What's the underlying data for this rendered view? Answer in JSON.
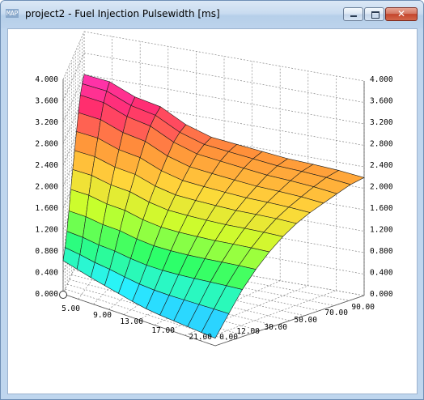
{
  "window": {
    "title": "project2 - Fuel Injection Pulsewidth [ms]",
    "icon_label": "MAP",
    "buttons": {
      "minimize": "minimize-icon",
      "maximize": "maximize-icon",
      "close": "close-icon"
    }
  },
  "chart_data": {
    "type": "surface",
    "title": "",
    "z_ticks": [
      "0.000",
      "0.400",
      "0.800",
      "1.200",
      "1.600",
      "2.000",
      "2.400",
      "2.800",
      "3.200",
      "3.600",
      "4.000"
    ],
    "x_ticks": [
      "5.00",
      "9.00",
      "13.00",
      "17.00",
      "21.00"
    ],
    "y_ticks": [
      "0.00",
      "12.00",
      "30.00",
      "50.00",
      "70.00",
      "90.00"
    ],
    "zlim": [
      0,
      4
    ],
    "grid": true,
    "colormap": [
      "#2f8cff",
      "#29f3ff",
      "#2cff6a",
      "#c8ff2c",
      "#ffd73a",
      "#ff8f3a",
      "#ff2e6e",
      "#ff35c8"
    ],
    "surface_edges": {
      "front_edge_z": [
        0.62,
        0.55,
        0.48,
        0.42,
        0.36,
        0.3,
        0.25,
        0.22,
        0.2,
        0.18,
        0.16,
        0.14
      ],
      "back_edge_z": [
        3.2,
        3.15,
        2.95,
        2.85,
        2.6,
        2.45,
        2.4,
        2.35,
        2.3,
        2.28,
        2.25,
        2.2
      ],
      "left_edge_z": [
        0.62,
        0.8,
        1.05,
        1.4,
        1.75,
        2.05,
        2.35,
        2.65,
        2.95,
        3.1,
        3.2
      ],
      "right_edge_z": [
        0.14,
        0.55,
        0.95,
        1.25,
        1.5,
        1.7,
        1.85,
        1.95,
        2.05,
        2.15,
        2.2
      ]
    }
  }
}
